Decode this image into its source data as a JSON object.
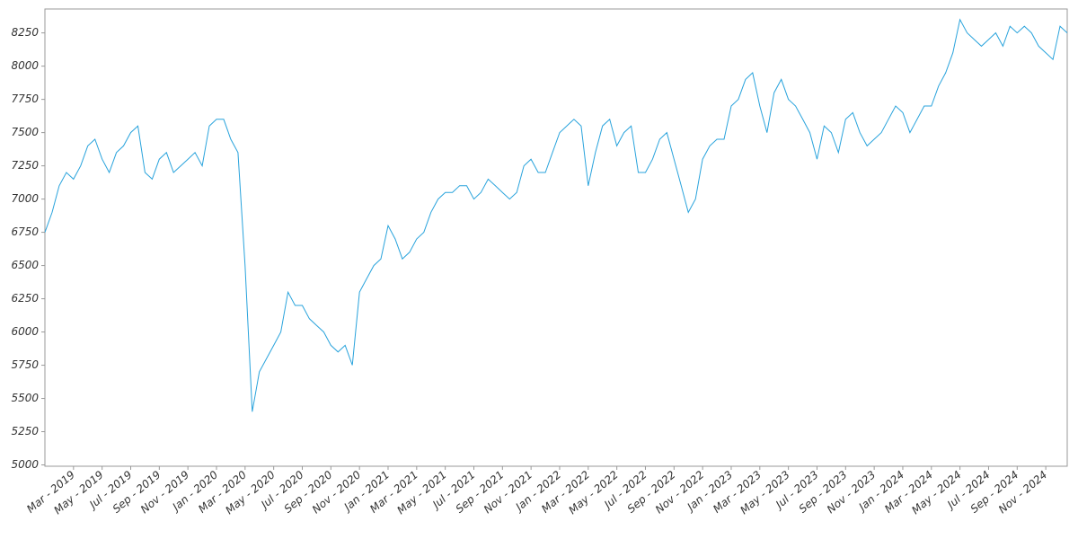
{
  "chart_data": {
    "type": "line",
    "color": "#29a3dc",
    "ylim": [
      4990,
      8430
    ],
    "yticks": [
      5000,
      5250,
      5500,
      5750,
      6000,
      6250,
      6500,
      6750,
      7000,
      7250,
      7500,
      7750,
      8000,
      8250
    ],
    "categories": [
      null,
      null,
      null,
      null,
      "Mar - 2019",
      null,
      null,
      null,
      "May - 2019",
      null,
      null,
      null,
      "Jul - 2019",
      null,
      null,
      null,
      "Sep - 2019",
      null,
      null,
      null,
      "Nov - 2019",
      null,
      null,
      null,
      "Jan - 2020",
      null,
      null,
      null,
      "Mar - 2020",
      null,
      null,
      null,
      "May - 2020",
      null,
      null,
      null,
      "Jul - 2020",
      null,
      null,
      null,
      "Sep - 2020",
      null,
      null,
      null,
      "Nov - 2020",
      null,
      null,
      null,
      "Jan - 2021",
      null,
      null,
      null,
      "Mar - 2021",
      null,
      null,
      null,
      "May - 2021",
      null,
      null,
      null,
      "Jul - 2021",
      null,
      null,
      null,
      "Sep - 2021",
      null,
      null,
      null,
      "Nov - 2021",
      null,
      null,
      null,
      "Jan - 2022",
      null,
      null,
      null,
      "Mar - 2022",
      null,
      null,
      null,
      "May - 2022",
      null,
      null,
      null,
      "Jul - 2022",
      null,
      null,
      null,
      "Sep - 2022",
      null,
      null,
      null,
      "Nov - 2022",
      null,
      null,
      null,
      "Jan - 2023",
      null,
      null,
      null,
      "Mar - 2023",
      null,
      null,
      null,
      "May - 2023",
      null,
      null,
      null,
      "Jul - 2023",
      null,
      null,
      null,
      "Sep - 2023",
      null,
      null,
      null,
      "Nov - 2023",
      null,
      null,
      null,
      "Jan - 2024",
      null,
      null,
      null,
      "Mar - 2024",
      null,
      null,
      null,
      "May - 2024",
      null,
      null,
      null,
      "Jul - 2024",
      null,
      null,
      null,
      "Sep - 2024",
      null,
      null,
      null,
      "Nov - 2024",
      null,
      null,
      null
    ],
    "values": [
      6750,
      6900,
      7100,
      7200,
      7150,
      7250,
      7400,
      7450,
      7300,
      7200,
      7350,
      7400,
      7500,
      7550,
      7200,
      7150,
      7300,
      7350,
      7200,
      7250,
      7300,
      7350,
      7250,
      7550,
      7600,
      7600,
      7450,
      7350,
      6500,
      5400,
      5700,
      5800,
      5900,
      6000,
      6300,
      6200,
      6200,
      6100,
      6050,
      6000,
      5900,
      5850,
      5900,
      5750,
      6300,
      6400,
      6500,
      6550,
      6800,
      6700,
      6550,
      6600,
      6700,
      6750,
      6900,
      7000,
      7050,
      7050,
      7100,
      7100,
      7000,
      7050,
      7150,
      7100,
      7050,
      7000,
      7050,
      7250,
      7300,
      7200,
      7200,
      7350,
      7500,
      7550,
      7600,
      7550,
      7100,
      7350,
      7550,
      7600,
      7400,
      7500,
      7550,
      7200,
      7200,
      7300,
      7450,
      7500,
      7300,
      7100,
      6900,
      7000,
      7300,
      7400,
      7450,
      7450,
      7700,
      7750,
      7900,
      7950,
      7700,
      7500,
      7800,
      7900,
      7750,
      7700,
      7600,
      7500,
      7300,
      7550,
      7500,
      7350,
      7600,
      7650,
      7500,
      7400,
      7450,
      7500,
      7600,
      7700,
      7650,
      7500,
      7600,
      7700,
      7700,
      7850,
      7950,
      8100,
      8350,
      8250,
      8200,
      8150,
      8200,
      8250,
      8150,
      8300,
      8250,
      8300,
      8250,
      8150,
      8100,
      8050,
      8300,
      8250
    ]
  }
}
